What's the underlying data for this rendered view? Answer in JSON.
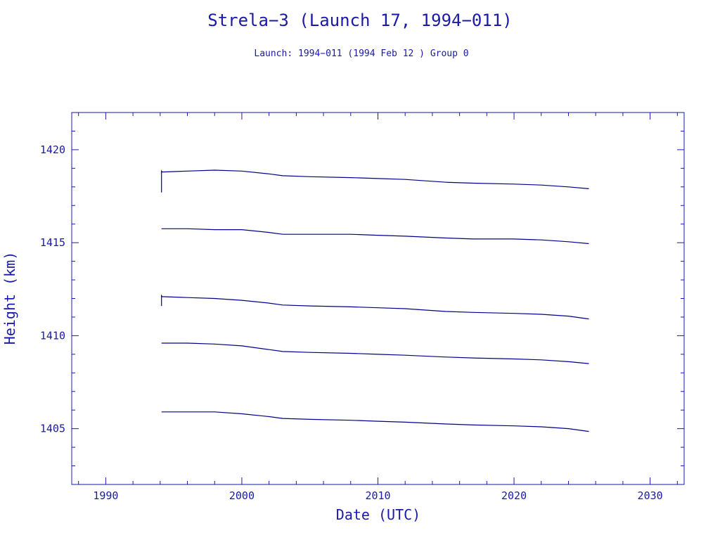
{
  "chart_data": {
    "type": "line",
    "title": "Strela−3 (Launch 17, 1994−011)",
    "subtitle": "Launch: 1994−011  (1994 Feb 12 )  Group 0",
    "xlabel": "Date (UTC)",
    "ylabel": "Height (km)",
    "xlim": [
      1987.5,
      2032.5
    ],
    "ylim": [
      1402,
      1422
    ],
    "x_ticks": [
      1990,
      2000,
      2010,
      2020,
      2030
    ],
    "x_tick_labels": [
      "1990",
      "2000",
      "2010",
      "2020",
      "2030"
    ],
    "y_ticks": [
      1405,
      1410,
      1415,
      1420
    ],
    "y_tick_labels": [
      "1405",
      "1410",
      "1415",
      "1420"
    ],
    "grid": false,
    "line_color": "#00008b",
    "text_color": "#1a1aa8",
    "series": [
      {
        "x": [
          1994.1,
          1994.1,
          1994.15,
          1996,
          1998,
          2000,
          2002,
          2003,
          2005,
          2008,
          2010,
          2012,
          2015,
          2017,
          2020,
          2022,
          2024,
          2025.5
        ],
        "y": [
          1417.7,
          1418.85,
          1418.8,
          1418.85,
          1418.9,
          1418.85,
          1418.7,
          1418.6,
          1418.55,
          1418.5,
          1418.45,
          1418.4,
          1418.25,
          1418.2,
          1418.15,
          1418.1,
          1418.0,
          1417.9
        ]
      },
      {
        "x": [
          1994.1,
          1996,
          1998,
          2000,
          2002,
          2003,
          2005,
          2008,
          2010,
          2012,
          2015,
          2017,
          2020,
          2022,
          2024,
          2025.5
        ],
        "y": [
          1415.75,
          1415.75,
          1415.7,
          1415.7,
          1415.55,
          1415.45,
          1415.45,
          1415.45,
          1415.4,
          1415.35,
          1415.25,
          1415.2,
          1415.2,
          1415.15,
          1415.05,
          1414.95
        ]
      },
      {
        "x": [
          1994.1,
          1994.1,
          1994.15,
          1996,
          1998,
          2000,
          2002,
          2003,
          2005,
          2008,
          2010,
          2012,
          2015,
          2017,
          2020,
          2022,
          2024,
          2025.5
        ],
        "y": [
          1411.6,
          1412.15,
          1412.1,
          1412.05,
          1412.0,
          1411.9,
          1411.75,
          1411.65,
          1411.6,
          1411.55,
          1411.5,
          1411.45,
          1411.3,
          1411.25,
          1411.2,
          1411.15,
          1411.05,
          1410.9
        ]
      },
      {
        "x": [
          1994.1,
          1996,
          1998,
          2000,
          2002,
          2003,
          2005,
          2008,
          2010,
          2012,
          2015,
          2017,
          2020,
          2022,
          2024,
          2025.5
        ],
        "y": [
          1409.6,
          1409.6,
          1409.55,
          1409.45,
          1409.25,
          1409.15,
          1409.1,
          1409.05,
          1409.0,
          1408.95,
          1408.85,
          1408.8,
          1408.75,
          1408.7,
          1408.6,
          1408.5
        ]
      },
      {
        "x": [
          1994.1,
          1996,
          1998,
          2000,
          2002,
          2003,
          2005,
          2008,
          2010,
          2012,
          2015,
          2017,
          2020,
          2022,
          2024,
          2025.5
        ],
        "y": [
          1405.9,
          1405.9,
          1405.9,
          1405.8,
          1405.65,
          1405.55,
          1405.5,
          1405.45,
          1405.4,
          1405.35,
          1405.25,
          1405.2,
          1405.15,
          1405.1,
          1405.0,
          1404.85
        ]
      }
    ]
  }
}
